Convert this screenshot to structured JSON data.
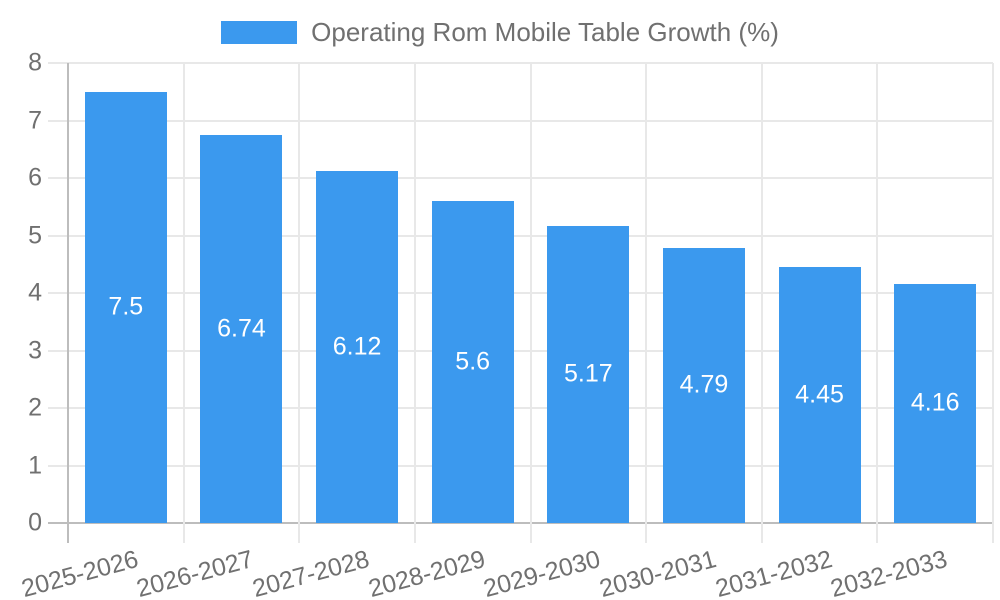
{
  "legend": {
    "label": "Operating Rom Mobile Table Growth (%)"
  },
  "colors": {
    "bar": "#3b99ee",
    "text": "#707070",
    "grid": "#e8e8e8",
    "axis": "#bdbdbd",
    "value_text": "#ffffff",
    "background": "#ffffff"
  },
  "chart_data": {
    "type": "bar",
    "title": "Operating Rom Mobile Table Growth (%)",
    "categories": [
      "2025-2026",
      "2026-2027",
      "2027-2028",
      "2028-2029",
      "2029-2030",
      "2030-2031",
      "2031-2032",
      "2032-2033"
    ],
    "values": [
      7.5,
      6.74,
      6.12,
      5.6,
      5.17,
      4.79,
      4.45,
      4.16
    ],
    "value_labels": [
      "7.5",
      "6.74",
      "6.12",
      "5.6",
      "5.17",
      "4.79",
      "4.45",
      "4.16"
    ],
    "xlabel": "",
    "ylabel": "",
    "ylim": [
      0,
      8
    ],
    "yticks": [
      0,
      1,
      2,
      3,
      4,
      5,
      6,
      7,
      8
    ],
    "grid": true,
    "legend_position": "top",
    "value_labels_position": "center-inside",
    "value_labels_color": "#ffffff"
  }
}
